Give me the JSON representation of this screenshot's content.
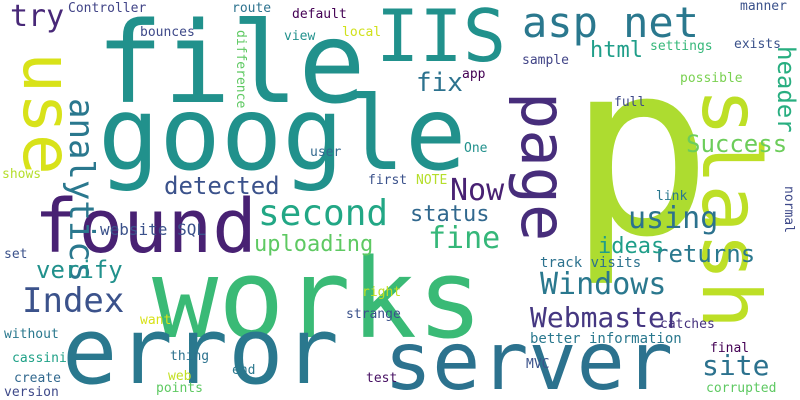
{
  "palette": {
    "dark_purple": "#482173",
    "deep_blue": "#3b528b",
    "steel_blue": "#2c728e",
    "teal": "#21918c",
    "green_teal": "#28ae80",
    "green": "#5ec962",
    "light_green": "#addc30",
    "yellow": "#d0e11c",
    "bright_yellow": "#e7e419",
    "background": "#ffffff"
  },
  "words": [
    {
      "text": "p",
      "color": "#addc30"
    },
    {
      "text": "file",
      "color": "#21918c"
    },
    {
      "text": "google",
      "color": "#21918c"
    },
    {
      "text": "works",
      "color": "#3aba76"
    },
    {
      "text": "error",
      "color": "#2a788e"
    },
    {
      "text": "server",
      "color": "#2c728e"
    },
    {
      "text": "found",
      "color": "#482173"
    },
    {
      "text": "slash",
      "color": "#bddf26"
    },
    {
      "text": "use",
      "color": "#d8e219"
    },
    {
      "text": "IIS",
      "color": "#21918c"
    },
    {
      "text": "page",
      "color": "#472d7b"
    },
    {
      "text": "asp net",
      "color": "#2a788e"
    },
    {
      "text": "second",
      "color": "#22a785"
    },
    {
      "text": "Index",
      "color": "#3b528b"
    },
    {
      "text": "analytics",
      "color": "#2a788e"
    },
    {
      "text": "Now",
      "color": "#482173"
    },
    {
      "text": "Windows",
      "color": "#2a788e"
    },
    {
      "text": "Webmaster",
      "color": "#453781"
    },
    {
      "text": "site",
      "color": "#2c728e"
    },
    {
      "text": "try",
      "color": "#482878"
    },
    {
      "text": "fine",
      "color": "#35b779"
    },
    {
      "text": "using",
      "color": "#2c728e"
    },
    {
      "text": "returns",
      "color": "#2a788e"
    },
    {
      "text": "header",
      "color": "#28ae80"
    },
    {
      "text": "Success",
      "color": "#6ccd5a"
    },
    {
      "text": "detected",
      "color": "#3b528b"
    },
    {
      "text": "uploading",
      "color": "#5ec962"
    },
    {
      "text": "verify",
      "color": "#21918c"
    },
    {
      "text": "status",
      "color": "#31688e"
    },
    {
      "text": "ideas",
      "color": "#1f9e89"
    },
    {
      "text": "fix",
      "color": "#2c728e"
    },
    {
      "text": "html",
      "color": "#1f9e89"
    },
    {
      "text": "website SQL",
      "color": "#3b528b"
    },
    {
      "text": "better information",
      "color": "#2a788e"
    },
    {
      "text": "track visits",
      "color": "#2c728e"
    },
    {
      "text": "Controller",
      "color": "#414487"
    },
    {
      "text": "route",
      "color": "#2c728e"
    },
    {
      "text": "default",
      "color": "#440154"
    },
    {
      "text": "manner",
      "color": "#3b528b"
    },
    {
      "text": "bounces",
      "color": "#3e4989"
    },
    {
      "text": "view",
      "color": "#21918c"
    },
    {
      "text": "local",
      "color": "#d0e11c"
    },
    {
      "text": "difference",
      "color": "#5ec962"
    },
    {
      "text": "settings",
      "color": "#35b779"
    },
    {
      "text": "exists",
      "color": "#3b528b"
    },
    {
      "text": "sample",
      "color": "#414487"
    },
    {
      "text": "app",
      "color": "#440154"
    },
    {
      "text": "full",
      "color": "#3e4989"
    },
    {
      "text": "possible",
      "color": "#7ad151"
    },
    {
      "text": "One",
      "color": "#21918c"
    },
    {
      "text": "user",
      "color": "#31688e"
    },
    {
      "text": "shows",
      "color": "#b5de2b"
    },
    {
      "text": "first",
      "color": "#3b528b"
    },
    {
      "text": "NOTE",
      "color": "#b5de2b"
    },
    {
      "text": "link",
      "color": "#2a788e"
    },
    {
      "text": "normal",
      "color": "#3e4989"
    },
    {
      "text": "set",
      "color": "#3b528b"
    },
    {
      "text": "right",
      "color": "#c2df23"
    },
    {
      "text": "want",
      "color": "#d8e219"
    },
    {
      "text": "strange",
      "color": "#3b528b"
    },
    {
      "text": "catches",
      "color": "#46327e"
    },
    {
      "text": "without",
      "color": "#2a788e"
    },
    {
      "text": "thing",
      "color": "#2c728e"
    },
    {
      "text": "MVC",
      "color": "#3b528b"
    },
    {
      "text": "final",
      "color": "#440154"
    },
    {
      "text": "cassini",
      "color": "#1fa187"
    },
    {
      "text": "create",
      "color": "#31688e"
    },
    {
      "text": "web",
      "color": "#c2df23"
    },
    {
      "text": "points",
      "color": "#5ec962"
    },
    {
      "text": "end",
      "color": "#2a788e"
    },
    {
      "text": "test",
      "color": "#471063"
    },
    {
      "text": "corrupted",
      "color": "#5ec962"
    },
    {
      "text": "version",
      "color": "#3e4989"
    }
  ]
}
